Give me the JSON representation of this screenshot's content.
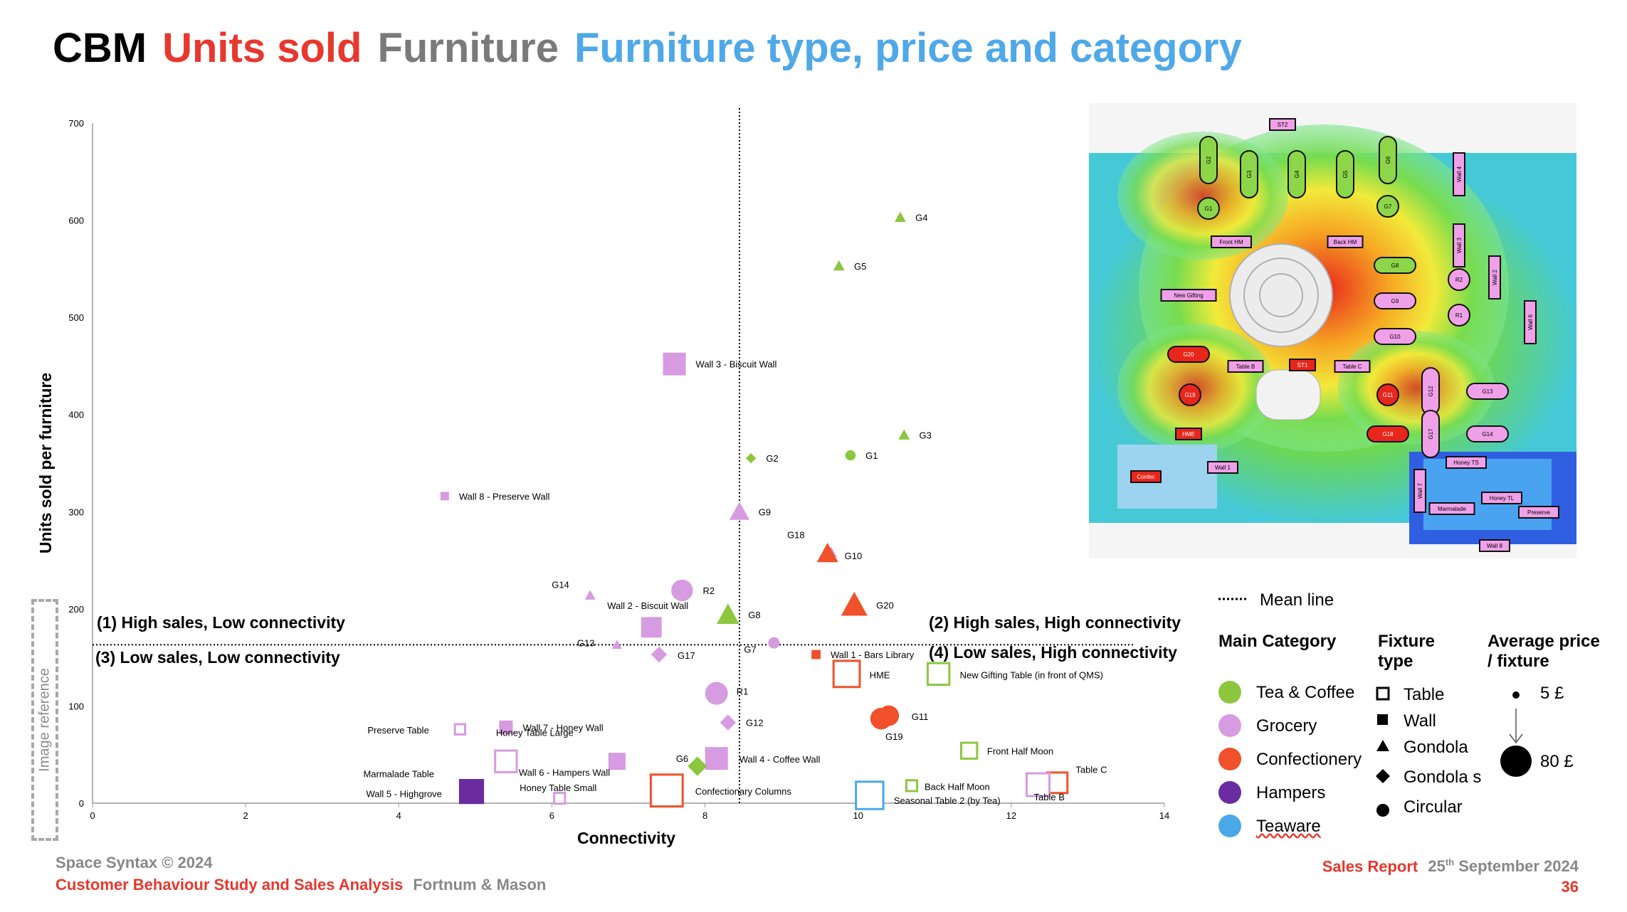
{
  "title": {
    "part1": "CBM",
    "part2": "Units sold",
    "part3": "Furniture",
    "part4": "Furniture type, price and category",
    "colors": {
      "part1": "#000000",
      "part2": "#e8372d",
      "part3": "#7a7a7a",
      "part4": "#4fa8e8"
    }
  },
  "quadrants": {
    "q1": "(1) High sales, Low connectivity",
    "q2": "(2) High sales, High connectivity",
    "q3": "(3) Low sales, Low connectivity",
    "q4": "(4) Low sales, High connectivity"
  },
  "image_reference_label": "Image reference",
  "map_labels": [
    "ST2",
    "G2",
    "G3",
    "G4",
    "G5",
    "G6",
    "G7",
    "Wall 4",
    "G1",
    "Front HM",
    "Back HM",
    "Wall 3",
    "G8",
    "R2",
    "Wall 2",
    "New Gifting",
    "G9",
    "R1",
    "Wall 6",
    "G10",
    "G20",
    "Table B",
    "ST1",
    "Table C",
    "G19",
    "G11",
    "G12",
    "G13",
    "HME",
    "G18",
    "G17",
    "G14",
    "Honey TS",
    "Confec",
    "Wall 1",
    "Wall 7",
    "Marmalade",
    "Honey TL",
    "Preserve",
    "Wall 8"
  ],
  "legend": {
    "mean_line": "Mean line",
    "main_category_header": "Main Category",
    "categories": [
      {
        "label": "Tea & Coffee",
        "color": "#8dc63f"
      },
      {
        "label": "Grocery",
        "color": "#d69be0"
      },
      {
        "label": "Confectionery",
        "color": "#f0502a"
      },
      {
        "label": "Hampers",
        "color": "#6a2ca0"
      },
      {
        "label": "Teaware",
        "color": "#4aa8e8"
      }
    ],
    "fixture_header_line1": "Fixture",
    "fixture_header_line2": "type",
    "fixtures": [
      {
        "label": "Table",
        "icon": "hollow-square-icon"
      },
      {
        "label": "Wall",
        "icon": "filled-square-icon"
      },
      {
        "label": "Gondola",
        "icon": "triangle-icon"
      },
      {
        "label": "Gondola s",
        "icon": "diamond-icon"
      },
      {
        "label": "Circular",
        "icon": "circle-icon"
      }
    ],
    "price_header_line1": "Average price",
    "price_header_line2": "/ fixture",
    "price_small": "5 £",
    "price_large": "80 £"
  },
  "footer": {
    "copyright": "Space Syntax © 2024",
    "study": "Customer Behaviour Study and Sales Analysis",
    "client": "Fortnum & Mason",
    "report": "Sales Report",
    "date_day": "25",
    "date_suffix": "th",
    "date_rest": "September 2024",
    "page": "36"
  },
  "chart_data": {
    "type": "scatter",
    "xlabel": "Connectivity",
    "ylabel": "Units sold per furniture",
    "xlim": [
      0,
      14
    ],
    "ylim": [
      0,
      700
    ],
    "xticks": [
      0,
      2,
      4,
      6,
      8,
      10,
      12,
      14
    ],
    "yticks": [
      0,
      100,
      200,
      300,
      400,
      500,
      600,
      700
    ],
    "mean_x": 8.45,
    "mean_y": 163,
    "grid": false,
    "colors": {
      "tea": "#8dc63f",
      "grocery": "#d69be0",
      "confectionery": "#f0502a",
      "hampers": "#6a2ca0",
      "teaware": "#4aa8e8"
    },
    "points": [
      {
        "label": "G4",
        "x": 10.55,
        "y": 603,
        "shape": "triangle",
        "cat": "tea",
        "price": 8
      },
      {
        "label": "G5",
        "x": 9.75,
        "y": 553,
        "shape": "triangle",
        "cat": "tea",
        "price": 8
      },
      {
        "label": "Wall 3 - Biscuit Wall",
        "x": 7.6,
        "y": 452,
        "shape": "square",
        "cat": "grocery",
        "price": 30
      },
      {
        "label": "G3",
        "x": 10.6,
        "y": 379,
        "shape": "triangle",
        "cat": "tea",
        "price": 8
      },
      {
        "label": "G2",
        "x": 8.6,
        "y": 355,
        "shape": "diamond",
        "cat": "tea",
        "price": 8
      },
      {
        "label": "G1",
        "x": 9.9,
        "y": 358,
        "shape": "circle",
        "cat": "tea",
        "price": 8
      },
      {
        "label": "Wall 8 - Preserve Wall",
        "x": 4.6,
        "y": 316,
        "shape": "square",
        "cat": "grocery",
        "price": 5
      },
      {
        "label": "G9",
        "x": 8.45,
        "y": 300,
        "shape": "triangle",
        "cat": "grocery",
        "price": 22
      },
      {
        "label": "G18",
        "x": 9.65,
        "y": 258,
        "shape": "triangle",
        "cat": "grocery",
        "price": 8
      },
      {
        "label": "G10",
        "x": 9.6,
        "y": 257,
        "shape": "triangle",
        "cat": "confectionery",
        "price": 24
      },
      {
        "label": "G14",
        "x": 6.5,
        "y": 214,
        "shape": "triangle",
        "cat": "grocery",
        "price": 7
      },
      {
        "label": "R2",
        "x": 7.7,
        "y": 219,
        "shape": "circle",
        "cat": "grocery",
        "price": 28
      },
      {
        "label": "G20",
        "x": 9.95,
        "y": 204,
        "shape": "triangle",
        "cat": "confectionery",
        "price": 32
      },
      {
        "label": "Wall 2 - Biscuit Wall",
        "x": 7.3,
        "y": 181,
        "shape": "square",
        "cat": "grocery",
        "price": 26
      },
      {
        "label": "G8",
        "x": 8.3,
        "y": 194,
        "shape": "triangle",
        "cat": "tea",
        "price": 26
      },
      {
        "label": "G13",
        "x": 6.85,
        "y": 163,
        "shape": "triangle",
        "cat": "grocery",
        "price": 6
      },
      {
        "label": "G7",
        "x": 8.9,
        "y": 165,
        "shape": "circle",
        "cat": "grocery",
        "price": 10
      },
      {
        "label": "G17",
        "x": 7.4,
        "y": 153,
        "shape": "diamond",
        "cat": "grocery",
        "price": 18
      },
      {
        "label": "Wall 1 - Bars Library",
        "x": 9.45,
        "y": 153,
        "shape": "square",
        "cat": "confectionery",
        "price": 6
      },
      {
        "label": "HME",
        "x": 9.85,
        "y": 133,
        "shape": "square_hollow",
        "cat": "confectionery",
        "price": 36
      },
      {
        "label": "New Gifting Table (in front of QMS)",
        "x": 11.05,
        "y": 133,
        "shape": "square_hollow",
        "cat": "tea",
        "price": 28
      },
      {
        "label": "R1",
        "x": 8.15,
        "y": 113,
        "shape": "circle",
        "cat": "grocery",
        "price": 30
      },
      {
        "label": "G11",
        "x": 10.4,
        "y": 90,
        "shape": "circle",
        "cat": "confectionery",
        "price": 26
      },
      {
        "label": "G19",
        "x": 10.3,
        "y": 87,
        "shape": "circle",
        "cat": "confectionery",
        "price": 28
      },
      {
        "label": "G12",
        "x": 8.3,
        "y": 83,
        "shape": "diamond",
        "cat": "grocery",
        "price": 18
      },
      {
        "label": "Preserve Table",
        "x": 4.8,
        "y": 76,
        "shape": "square_hollow",
        "cat": "grocery",
        "price": 8
      },
      {
        "label": "Wall 7 - Honey Wall",
        "x": 5.4,
        "y": 78,
        "shape": "square",
        "cat": "grocery",
        "price": 14
      },
      {
        "label": "Front Half Moon",
        "x": 11.45,
        "y": 54,
        "shape": "square_hollow",
        "cat": "tea",
        "price": 18
      },
      {
        "label": "Honey Table Large",
        "x": 5.4,
        "y": 43,
        "shape": "square_hollow",
        "cat": "grocery",
        "price": 28
      },
      {
        "label": "Wall 6 - Hampers Wall",
        "x": 6.85,
        "y": 43,
        "shape": "square",
        "cat": "grocery",
        "price": 20
      },
      {
        "label": "Wall 4 - Coffee Wall",
        "x": 8.15,
        "y": 46,
        "shape": "square",
        "cat": "grocery",
        "price": 30
      },
      {
        "label": "G6",
        "x": 7.9,
        "y": 38,
        "shape": "diamond",
        "cat": "tea",
        "price": 24
      },
      {
        "label": "Marmalade Table",
        "x": 4.95,
        "y": 12,
        "shape": "square",
        "cat": "hampers",
        "price": 34
      },
      {
        "label": "Honey Table Small",
        "x": 6.1,
        "y": 5,
        "shape": "square_hollow",
        "cat": "grocery",
        "price": 9
      },
      {
        "label": "Confectionary Columns",
        "x": 7.5,
        "y": 13,
        "shape": "square_hollow",
        "cat": "confectionery",
        "price": 46
      },
      {
        "label": "Back Half Moon",
        "x": 10.7,
        "y": 18,
        "shape": "square_hollow",
        "cat": "tea",
        "price": 9
      },
      {
        "label": "Seasonal Table 2 (by Tea)",
        "x": 10.15,
        "y": 8,
        "shape": "square_hollow",
        "cat": "teaware",
        "price": 38
      },
      {
        "label": "Table C",
        "x": 12.6,
        "y": 21,
        "shape": "square_hollow",
        "cat": "confectionery",
        "price": 26
      },
      {
        "label": "Table B",
        "x": 12.35,
        "y": 19,
        "shape": "square_hollow",
        "cat": "grocery",
        "price": 30
      }
    ]
  }
}
